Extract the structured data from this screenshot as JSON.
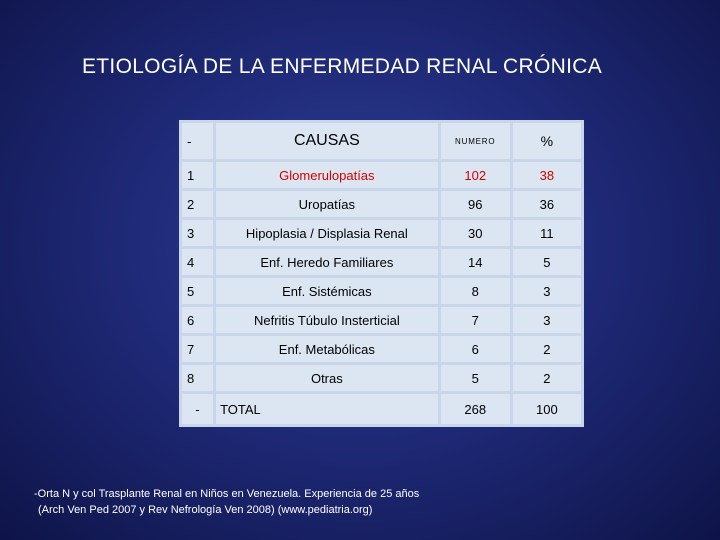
{
  "title": "ETIOLOGÍA DE LA ENFERMEDAD RENAL CRÓNICA",
  "table": {
    "headers": {
      "n": "-",
      "causa": "CAUSAS",
      "numero": "NUMERO",
      "pct": "%"
    },
    "rows": [
      {
        "n": "1",
        "causa": "Glomerulopatías",
        "numero": "102",
        "pct": "38"
      },
      {
        "n": "2",
        "causa": "Uropatías",
        "numero": "96",
        "pct": "36"
      },
      {
        "n": "3",
        "causa": "Hipoplasia / Displasia Renal",
        "numero": "30",
        "pct": "11"
      },
      {
        "n": "4",
        "causa": "Enf. Heredo Familiares",
        "numero": "14",
        "pct": "5"
      },
      {
        "n": "5",
        "causa": "Enf. Sistémicas",
        "numero": "8",
        "pct": "3"
      },
      {
        "n": "6",
        "causa": "Nefritis Túbulo Insterticial",
        "numero": "7",
        "pct": "3"
      },
      {
        "n": "7",
        "causa": "Enf. Metabólicas",
        "numero": "6",
        "pct": "2"
      },
      {
        "n": "8",
        "causa": "Otras",
        "numero": "5",
        "pct": "2"
      }
    ],
    "total": {
      "n": "-",
      "label": "TOTAL",
      "numero": "268",
      "pct": "100"
    },
    "highlight_color": "#d40000"
  },
  "footnote": {
    "line1": "-Orta N y col Trasplante Renal en Niños en Venezuela. Experiencia de 25 años",
    "line2": "(Arch Ven Ped 2007 y Rev Nefrología Ven 2008) (www.pediatria.org)"
  }
}
